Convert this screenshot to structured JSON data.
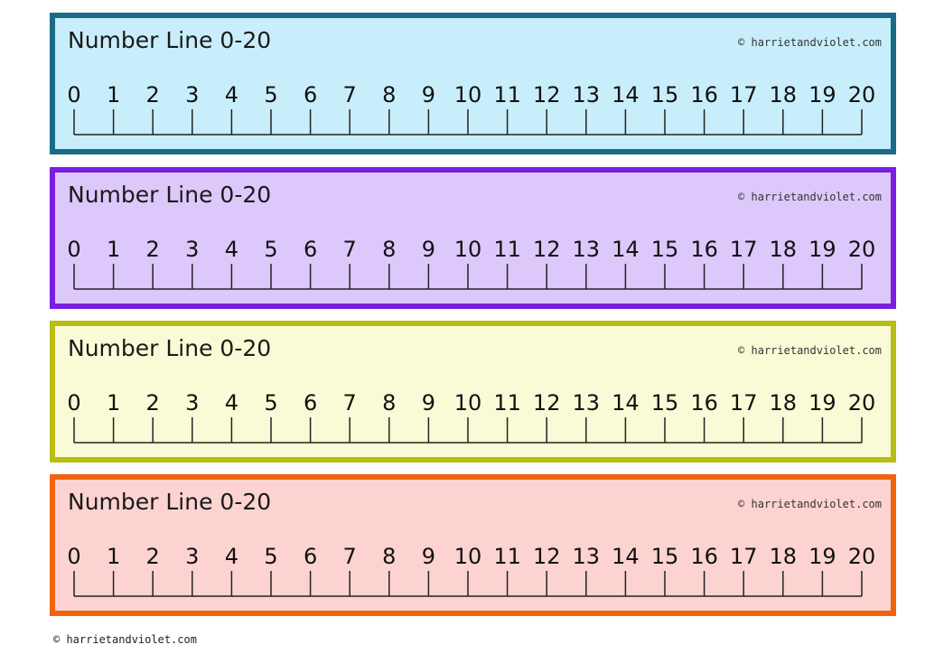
{
  "strips": [
    {
      "title": "Number Line 0-20",
      "credit": "© harrietandviolet.com",
      "fill_color": "#c8eefb",
      "border_color": "#1a6b86"
    },
    {
      "title": "Number Line 0-20",
      "credit": "© harrietandviolet.com",
      "fill_color": "#dcc8fb",
      "border_color": "#7a1fe0"
    },
    {
      "title": "Number Line 0-20",
      "credit": "© harrietandviolet.com",
      "fill_color": "#fafbd6",
      "border_color": "#b9bd14"
    },
    {
      "title": "Number Line 0-20",
      "credit": "© harrietandviolet.com",
      "fill_color": "#fcd3d1",
      "border_color": "#f0640f"
    }
  ],
  "number_line": {
    "labels": [
      "0",
      "1",
      "2",
      "3",
      "4",
      "5",
      "6",
      "7",
      "8",
      "9",
      "10",
      "11",
      "12",
      "13",
      "14",
      "15",
      "16",
      "17",
      "18",
      "19",
      "20"
    ],
    "line_color": "#222222"
  },
  "footer": {
    "credit": "© harrietandviolet.com"
  }
}
